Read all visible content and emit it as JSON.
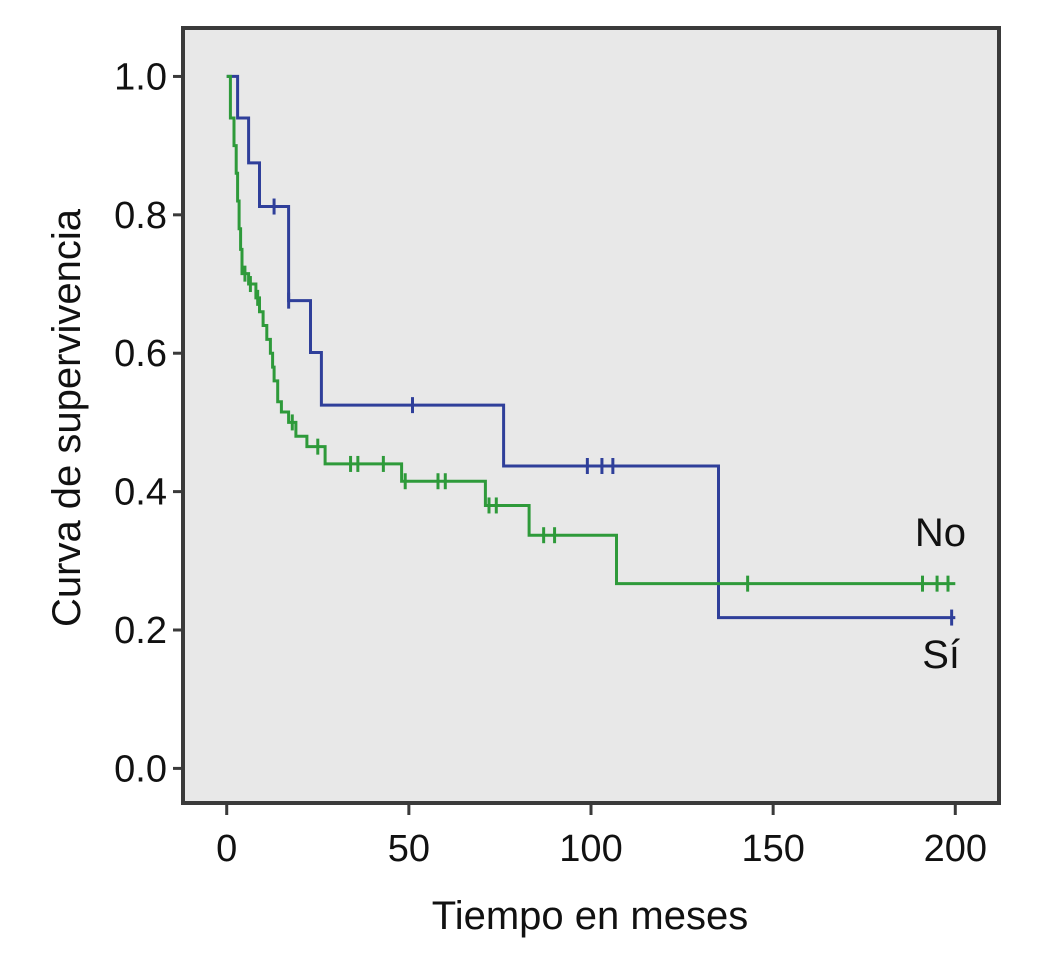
{
  "chart_data": {
    "type": "line",
    "subtype": "kaplan-meier step",
    "title": "",
    "xlabel": "Tiempo en meses",
    "ylabel": "Curva de supervivencia",
    "xlim": [
      -12,
      212
    ],
    "ylim": [
      -0.05,
      1.07
    ],
    "xticks": [
      0,
      50,
      100,
      150,
      200
    ],
    "yticks": [
      0.0,
      0.2,
      0.4,
      0.6,
      0.8,
      1.0
    ],
    "ytick_labels": [
      "0.0",
      "0.2",
      "0.4",
      "0.6",
      "0.8",
      "1.0"
    ],
    "grid": false,
    "background_color": "#e8e8e8",
    "series": [
      {
        "name": "No",
        "color": "#2f3f9a",
        "steps": [
          [
            0,
            1.0
          ],
          [
            3,
            0.94
          ],
          [
            6,
            0.875
          ],
          [
            9,
            0.812
          ],
          [
            17,
            0.676
          ],
          [
            23,
            0.601
          ],
          [
            26,
            0.525
          ],
          [
            76,
            0.437
          ],
          [
            135,
            0.218
          ],
          [
            200,
            0.218
          ]
        ],
        "censored": [
          [
            13,
            0.812
          ],
          [
            17,
            0.676
          ],
          [
            51,
            0.525
          ],
          [
            99,
            0.437
          ],
          [
            103,
            0.437
          ],
          [
            106,
            0.437
          ],
          [
            199,
            0.218
          ]
        ]
      },
      {
        "name": "Sí",
        "color": "#2e9a3a",
        "steps": [
          [
            0,
            1.0
          ],
          [
            1,
            0.94
          ],
          [
            2,
            0.9
          ],
          [
            2.6,
            0.86
          ],
          [
            3,
            0.82
          ],
          [
            3.4,
            0.78
          ],
          [
            3.8,
            0.75
          ],
          [
            4.2,
            0.715
          ],
          [
            6,
            0.7
          ],
          [
            8,
            0.68
          ],
          [
            9,
            0.66
          ],
          [
            10,
            0.64
          ],
          [
            11,
            0.62
          ],
          [
            12,
            0.6
          ],
          [
            12.6,
            0.58
          ],
          [
            13,
            0.56
          ],
          [
            14,
            0.53
          ],
          [
            15,
            0.515
          ],
          [
            17,
            0.5
          ],
          [
            19,
            0.48
          ],
          [
            22,
            0.465
          ],
          [
            27,
            0.44
          ],
          [
            48,
            0.415
          ],
          [
            71,
            0.38
          ],
          [
            83,
            0.337
          ],
          [
            107,
            0.267
          ],
          [
            200,
            0.267
          ]
        ],
        "censored": [
          [
            5,
            0.715
          ],
          [
            6.5,
            0.7
          ],
          [
            8.5,
            0.68
          ],
          [
            18,
            0.5
          ],
          [
            25,
            0.465
          ],
          [
            34,
            0.44
          ],
          [
            36,
            0.44
          ],
          [
            43,
            0.44
          ],
          [
            49,
            0.415
          ],
          [
            58,
            0.415
          ],
          [
            60,
            0.415
          ],
          [
            72,
            0.38
          ],
          [
            74,
            0.38
          ],
          [
            87,
            0.337
          ],
          [
            90,
            0.337
          ],
          [
            143,
            0.267
          ],
          [
            191,
            0.267
          ],
          [
            195,
            0.267
          ],
          [
            198,
            0.267
          ]
        ]
      }
    ]
  }
}
